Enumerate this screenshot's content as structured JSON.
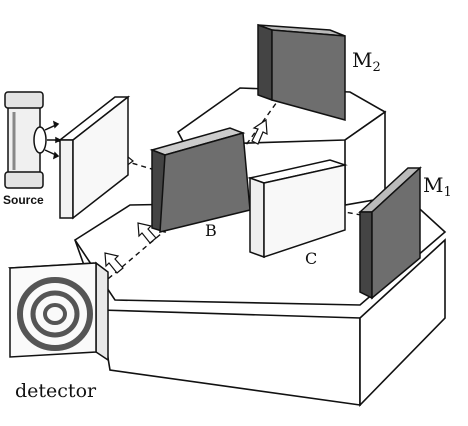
{
  "labels": {
    "source": "Source",
    "detector": "detector",
    "beam_splitter": "B",
    "compensator": "C",
    "mirror_2_letter": "M",
    "mirror_2_sub": "2",
    "mirror_1_letter": "M",
    "mirror_1_sub": "1"
  },
  "colors": {
    "ink": "#111111",
    "silvered_plate": "#6e6e6e",
    "table": "#ffffff",
    "glass": "#f8f8f8"
  }
}
